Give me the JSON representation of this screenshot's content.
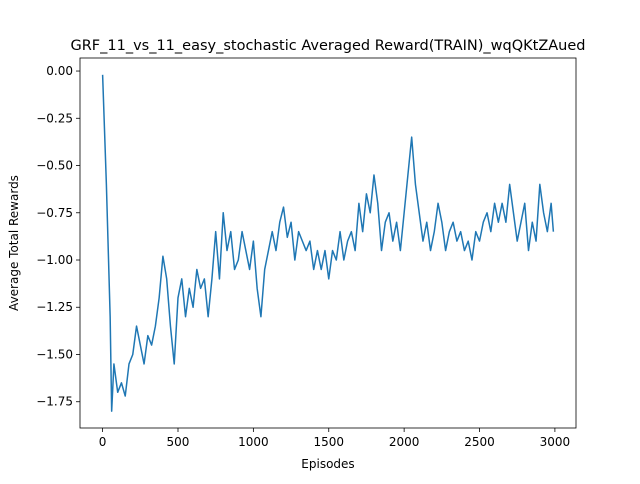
{
  "chart_data": {
    "type": "line",
    "title": "GRF_11_vs_11_easy_stochastic Averaged Reward(TRAIN)_wqQKtZAued",
    "x_label": "Episodes",
    "y_label": "Average Total Rewards",
    "x": [
      0,
      25,
      50,
      60,
      75,
      100,
      125,
      150,
      175,
      200,
      225,
      250,
      275,
      300,
      325,
      350,
      375,
      400,
      425,
      450,
      475,
      500,
      525,
      550,
      575,
      600,
      625,
      650,
      675,
      700,
      725,
      750,
      775,
      800,
      825,
      850,
      875,
      900,
      925,
      950,
      975,
      1000,
      1025,
      1050,
      1075,
      1100,
      1125,
      1150,
      1175,
      1200,
      1225,
      1250,
      1275,
      1300,
      1325,
      1350,
      1375,
      1400,
      1425,
      1450,
      1475,
      1500,
      1525,
      1550,
      1575,
      1600,
      1625,
      1650,
      1675,
      1700,
      1725,
      1750,
      1775,
      1800,
      1825,
      1850,
      1875,
      1900,
      1925,
      1950,
      1975,
      2000,
      2025,
      2050,
      2075,
      2100,
      2125,
      2150,
      2175,
      2200,
      2225,
      2250,
      2275,
      2300,
      2325,
      2350,
      2375,
      2400,
      2425,
      2450,
      2475,
      2500,
      2525,
      2550,
      2575,
      2600,
      2625,
      2650,
      2675,
      2700,
      2725,
      2750,
      2775,
      2800,
      2825,
      2850,
      2875,
      2900,
      2925,
      2950,
      2975,
      2990
    ],
    "series": [
      {
        "name": "reward",
        "color": "#1f77b4",
        "values": [
          -0.02,
          -0.6,
          -1.3,
          -1.8,
          -1.55,
          -1.7,
          -1.65,
          -1.72,
          -1.55,
          -1.5,
          -1.35,
          -1.45,
          -1.55,
          -1.4,
          -1.45,
          -1.35,
          -1.2,
          -0.98,
          -1.1,
          -1.35,
          -1.55,
          -1.2,
          -1.1,
          -1.3,
          -1.15,
          -1.25,
          -1.05,
          -1.15,
          -1.1,
          -1.3,
          -1.1,
          -0.85,
          -1.1,
          -0.75,
          -0.95,
          -0.85,
          -1.05,
          -1.0,
          -0.85,
          -0.95,
          -1.05,
          -0.9,
          -1.15,
          -1.3,
          -1.05,
          -0.95,
          -0.85,
          -0.95,
          -0.8,
          -0.72,
          -0.88,
          -0.8,
          -1.0,
          -0.85,
          -0.9,
          -0.95,
          -0.9,
          -1.05,
          -0.95,
          -1.05,
          -0.95,
          -1.1,
          -0.95,
          -1.0,
          -0.85,
          -1.0,
          -0.9,
          -0.85,
          -0.95,
          -0.7,
          -0.85,
          -0.65,
          -0.75,
          -0.55,
          -0.7,
          -0.95,
          -0.8,
          -0.75,
          -0.9,
          -0.8,
          -0.95,
          -0.75,
          -0.55,
          -0.35,
          -0.6,
          -0.75,
          -0.9,
          -0.8,
          -0.95,
          -0.85,
          -0.7,
          -0.8,
          -0.95,
          -0.85,
          -0.8,
          -0.9,
          -0.85,
          -0.95,
          -0.9,
          -1.0,
          -0.85,
          -0.9,
          -0.8,
          -0.75,
          -0.85,
          -0.7,
          -0.8,
          -0.7,
          -0.8,
          -0.6,
          -0.75,
          -0.9,
          -0.8,
          -0.7,
          -0.95,
          -0.8,
          -0.9,
          -0.6,
          -0.75,
          -0.85,
          -0.7,
          -0.85
        ]
      }
    ],
    "xlim": [
      -150,
      3140
    ],
    "ylim": [
      -1.889,
      0.069
    ],
    "xticks": [
      0,
      500,
      1000,
      1500,
      2000,
      2500,
      3000
    ],
    "yticks": [
      {
        "value": 0,
        "label": "0.00"
      },
      {
        "value": -0.25,
        "label": "−0.25"
      },
      {
        "value": -0.5,
        "label": "−0.50"
      },
      {
        "value": -0.75,
        "label": "−0.75"
      },
      {
        "value": -1.0,
        "label": "−1.00"
      },
      {
        "value": -1.25,
        "label": "−1.25"
      },
      {
        "value": -1.5,
        "label": "−1.50"
      },
      {
        "value": -1.75,
        "label": "−1.75"
      }
    ],
    "grid": false
  }
}
